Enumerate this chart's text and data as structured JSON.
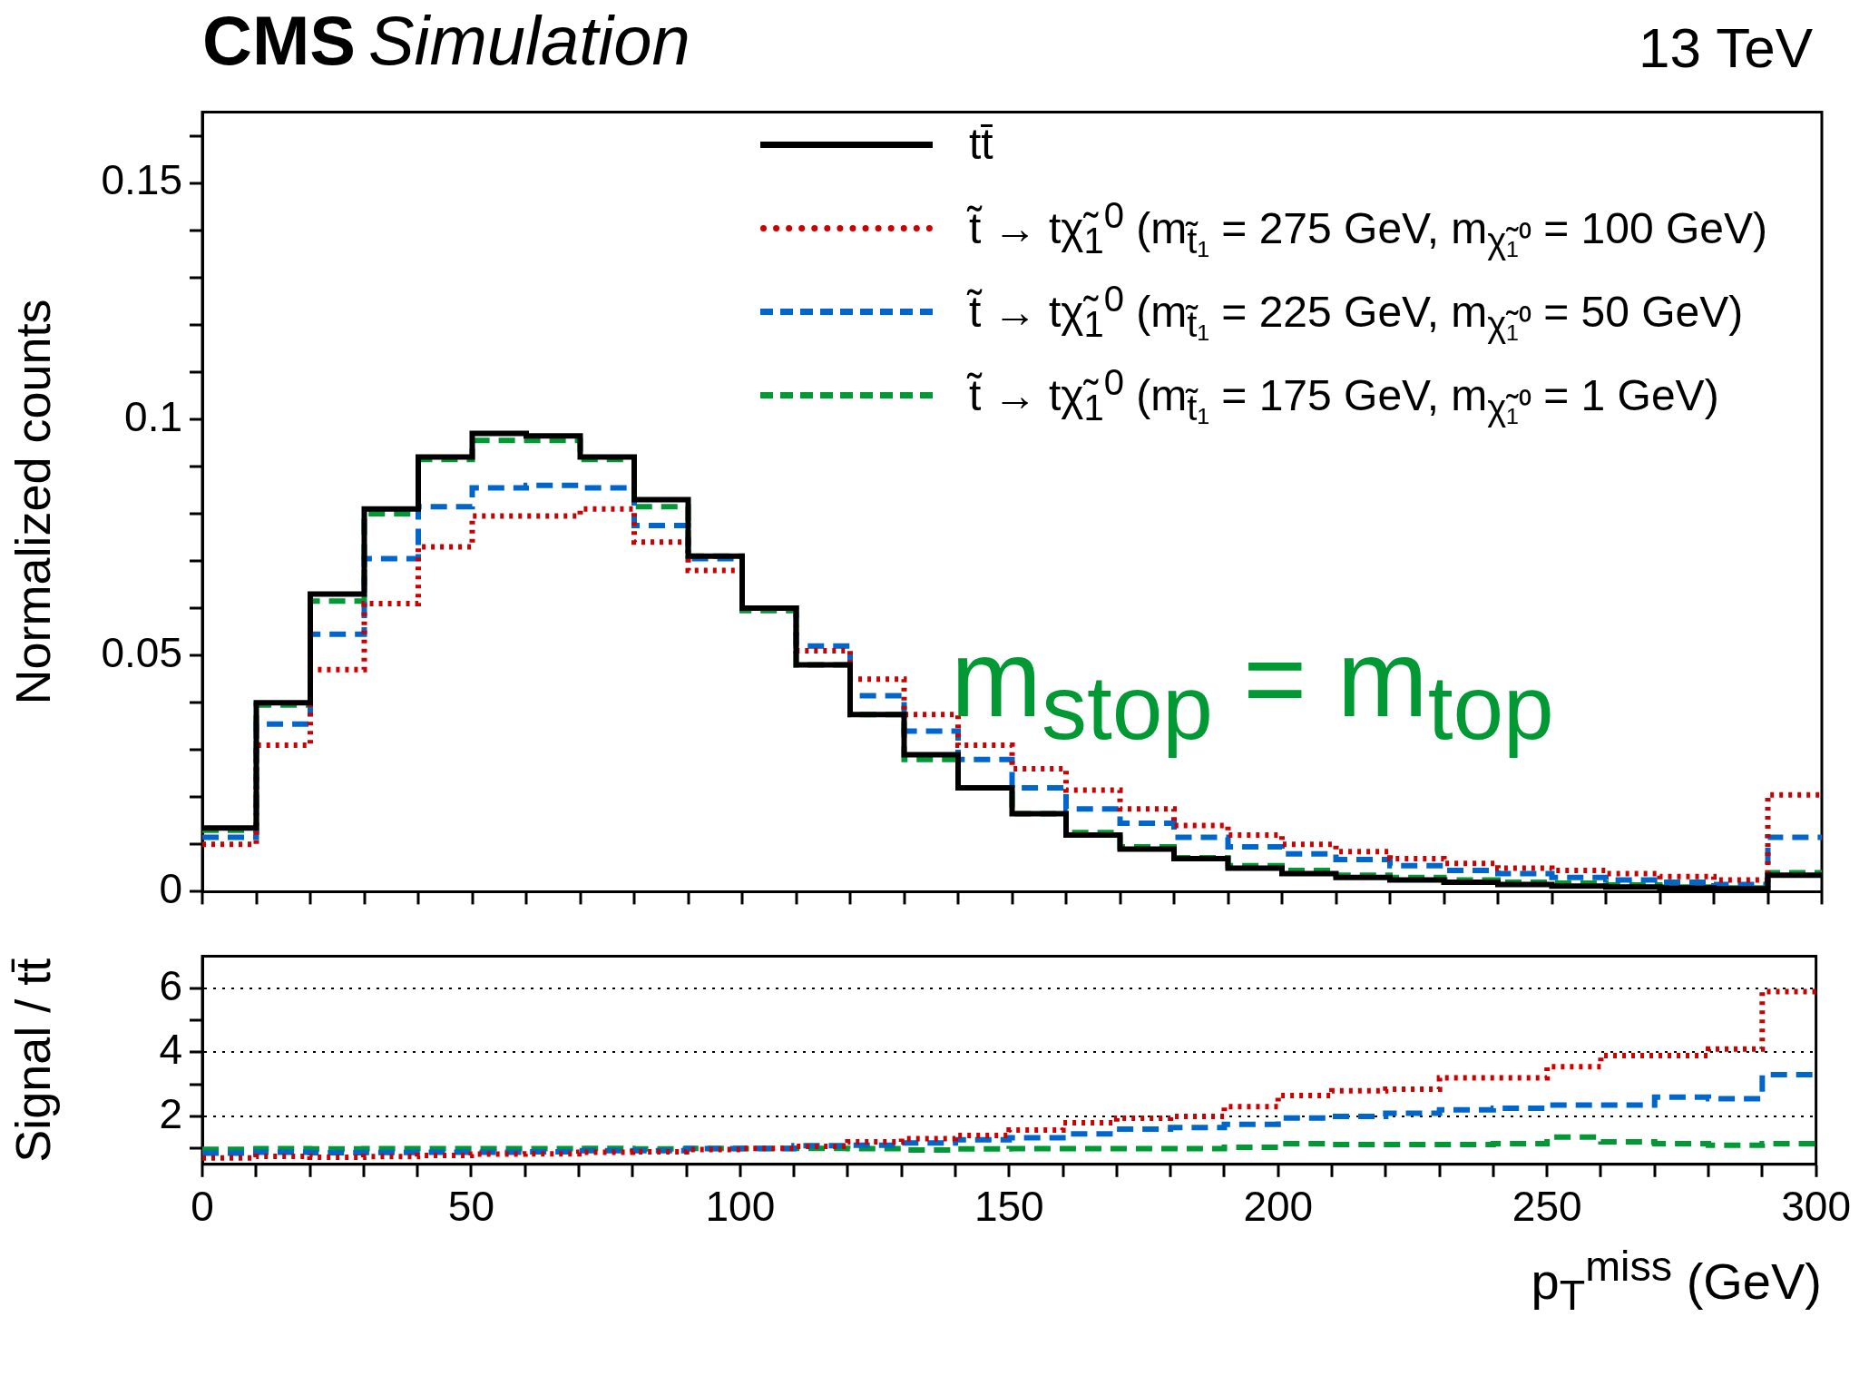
{
  "chart_data": [
    {
      "type": "histogram",
      "title": "CMS",
      "subtitle": "Simulation",
      "ylabel": "Normalized counts",
      "annotations": [
        "13 TeV",
        "m$_{stop}$ = m$_{top}$"
      ],
      "legend": "top right",
      "tick_labels": "y",
      "bins": [
        0,
        10,
        20,
        30,
        40,
        50,
        60,
        70,
        80,
        90,
        100,
        110,
        120,
        130,
        140,
        150,
        160,
        170,
        180,
        190,
        200,
        210,
        220,
        230,
        240,
        250,
        260,
        270,
        280,
        290,
        300
      ],
      "xlim": [
        0,
        300
      ],
      "ylim": [
        0,
        0.165
      ],
      "xticks": [
        0,
        {
          "value": 10,
          "label": null
        },
        {
          "value": 20,
          "label": null
        },
        {
          "value": 30,
          "label": null
        },
        {
          "value": 40,
          "label": null
        },
        50,
        {
          "value": 60,
          "label": null
        },
        {
          "value": 70,
          "label": null
        },
        {
          "value": 80,
          "label": null
        },
        {
          "value": 90,
          "label": null
        },
        100,
        {
          "value": 110,
          "label": null
        },
        {
          "value": 120,
          "label": null
        },
        {
          "value": 130,
          "label": null
        },
        {
          "value": 140,
          "label": null
        },
        150,
        {
          "value": 160,
          "label": null
        },
        {
          "value": 170,
          "label": null
        },
        {
          "value": 180,
          "label": null
        },
        {
          "value": 190,
          "label": null
        },
        200,
        {
          "value": 210,
          "label": null
        },
        {
          "value": 220,
          "label": null
        },
        {
          "value": 230,
          "label": null
        },
        {
          "value": 240,
          "label": null
        },
        250,
        {
          "value": 260,
          "label": null
        },
        {
          "value": 270,
          "label": null
        },
        {
          "value": 280,
          "label": null
        },
        {
          "value": 290,
          "label": null
        },
        300
      ],
      "yticks": [
        0,
        {
          "value": 0.01,
          "label": null
        },
        {
          "value": 0.02,
          "label": null
        },
        {
          "value": 0.03,
          "label": null
        },
        {
          "value": 0.04,
          "label": null
        },
        0.05,
        {
          "value": 0.06,
          "label": null
        },
        {
          "value": 0.07,
          "label": null
        },
        {
          "value": 0.08,
          "label": null
        },
        {
          "value": 0.09,
          "label": null
        },
        0.1,
        {
          "value": 0.11,
          "label": null
        },
        {
          "value": 0.12,
          "label": null
        },
        {
          "value": 0.13,
          "label": null
        },
        {
          "value": 0.14,
          "label": null
        },
        0.15,
        {
          "value": 0.16,
          "label": null
        }
      ],
      "series": [
        {
          "name": "tt̄",
          "color": "#000000",
          "line_style": "solid",
          "values": [
            0.0135,
            0.04,
            0.063,
            0.081,
            0.092,
            0.097,
            0.0965,
            0.092,
            0.083,
            0.071,
            0.06,
            0.048,
            0.0375,
            0.029,
            0.022,
            0.0165,
            0.012,
            0.009,
            0.007,
            0.005,
            0.0038,
            0.003,
            0.0025,
            0.002,
            0.0015,
            0.0012,
            0.001,
            0.0008,
            0.0006,
            0.0035
          ]
        },
        {
          "name": "t̃ → tχ̃$_{1}$$^{0}$ (m$_{t̃₁}$ = 275 GeV, m$_{χ̃₁⁰}$ = 100 GeV)",
          "color": "#cc0000",
          "line_style": "dotted",
          "values": [
            0.01,
            0.031,
            0.047,
            0.061,
            0.073,
            0.0795,
            0.0795,
            0.081,
            0.074,
            0.068,
            0.06,
            0.051,
            0.045,
            0.0375,
            0.031,
            0.026,
            0.0215,
            0.0175,
            0.014,
            0.012,
            0.01,
            0.0085,
            0.007,
            0.006,
            0.005,
            0.0045,
            0.0038,
            0.0032,
            0.0025,
            0.0205
          ]
        },
        {
          "name": "t̃ → tχ̃$_{1}$$^{0}$ (m$_{t̃₁}$ = 225 GeV, m$_{χ̃₁⁰}$ = 50 GeV)",
          "color": "#0066cc",
          "line_style": "dashed",
          "values": [
            0.0115,
            0.0355,
            0.0545,
            0.0705,
            0.0815,
            0.0855,
            0.086,
            0.0855,
            0.0775,
            0.0705,
            0.06,
            0.052,
            0.0415,
            0.034,
            0.028,
            0.022,
            0.0175,
            0.0145,
            0.0115,
            0.0095,
            0.008,
            0.0068,
            0.0055,
            0.0045,
            0.0038,
            0.003,
            0.0025,
            0.002,
            0.0015,
            0.0115
          ]
        },
        {
          "name": "t̃ → tχ̃$_{1}$$^{0}$ (m$_{t̃₁}$ = 175 GeV, m$_{χ̃₁⁰}$ = 1 GeV)",
          "color": "#009933",
          "line_style": "dashed",
          "values": [
            0.013,
            0.0395,
            0.0615,
            0.08,
            0.0915,
            0.0955,
            0.0955,
            0.0915,
            0.0815,
            0.071,
            0.0595,
            0.048,
            0.0375,
            0.028,
            0.022,
            0.0165,
            0.0125,
            0.0095,
            0.0072,
            0.0055,
            0.0045,
            0.0035,
            0.003,
            0.0025,
            0.002,
            0.0018,
            0.0014,
            0.001,
            0.0008,
            0.004
          ]
        }
      ]
    },
    {
      "type": "histogram",
      "xlabel": "p$_{T}$$^{miss}$ (GeV)",
      "ylabel": "Signal / tt̄",
      "grid": "y",
      "bins": [
        0,
        10,
        20,
        30,
        40,
        50,
        60,
        70,
        80,
        90,
        100,
        110,
        120,
        130,
        140,
        150,
        160,
        170,
        180,
        190,
        200,
        210,
        220,
        230,
        240,
        250,
        260,
        270,
        280,
        290,
        300
      ],
      "xlim": [
        0,
        300
      ],
      "ylim": [
        0.5,
        7
      ],
      "xticks": [
        0,
        {
          "value": 10,
          "label": null
        },
        {
          "value": 20,
          "label": null
        },
        {
          "value": 30,
          "label": null
        },
        {
          "value": 40,
          "label": null
        },
        50,
        {
          "value": 60,
          "label": null
        },
        {
          "value": 70,
          "label": null
        },
        {
          "value": 80,
          "label": null
        },
        {
          "value": 90,
          "label": null
        },
        100,
        {
          "value": 110,
          "label": null
        },
        {
          "value": 120,
          "label": null
        },
        {
          "value": 130,
          "label": null
        },
        {
          "value": 140,
          "label": null
        },
        150,
        {
          "value": 160,
          "label": null
        },
        {
          "value": 170,
          "label": null
        },
        {
          "value": 180,
          "label": null
        },
        {
          "value": 190,
          "label": null
        },
        200,
        {
          "value": 210,
          "label": null
        },
        {
          "value": 220,
          "label": null
        },
        {
          "value": 230,
          "label": null
        },
        {
          "value": 240,
          "label": null
        },
        250,
        {
          "value": 260,
          "label": null
        },
        {
          "value": 270,
          "label": null
        },
        {
          "value": 280,
          "label": null
        },
        {
          "value": 290,
          "label": null
        },
        300
      ],
      "yticks": [
        {
          "value": 1,
          "label": null
        },
        2,
        {
          "value": 3,
          "label": null
        },
        4,
        {
          "value": 5,
          "label": null
        },
        6
      ],
      "series": [
        {
          "color": "#cc0000",
          "line_style": "dotted",
          "values": [
            0.7,
            0.75,
            0.72,
            0.74,
            0.78,
            0.82,
            0.83,
            0.88,
            0.89,
            0.96,
            1.0,
            1.06,
            1.2,
            1.3,
            1.4,
            1.57,
            1.8,
            1.94,
            2.0,
            2.3,
            2.65,
            2.8,
            2.85,
            3.2,
            3.2,
            3.55,
            3.9,
            3.9,
            4.1,
            5.9
          ]
        },
        {
          "color": "#0066cc",
          "line_style": "dashed",
          "values": [
            0.85,
            0.88,
            0.86,
            0.87,
            0.88,
            0.88,
            0.89,
            0.93,
            0.93,
            0.99,
            1.0,
            1.08,
            1.1,
            1.17,
            1.27,
            1.33,
            1.45,
            1.6,
            1.65,
            1.75,
            1.95,
            2.0,
            2.1,
            2.2,
            2.25,
            2.35,
            2.35,
            2.6,
            2.55,
            3.3
          ]
        },
        {
          "color": "#009933",
          "line_style": "dashed",
          "values": [
            0.97,
            0.99,
            0.98,
            0.99,
            0.99,
            0.99,
            0.99,
            1.0,
            0.98,
            1.0,
            0.99,
            1.0,
            0.99,
            0.95,
            0.98,
            0.99,
            0.99,
            0.99,
            0.99,
            1.03,
            1.15,
            1.12,
            1.12,
            1.12,
            1.15,
            1.35,
            1.2,
            1.15,
            1.1,
            1.15
          ]
        }
      ]
    }
  ]
}
